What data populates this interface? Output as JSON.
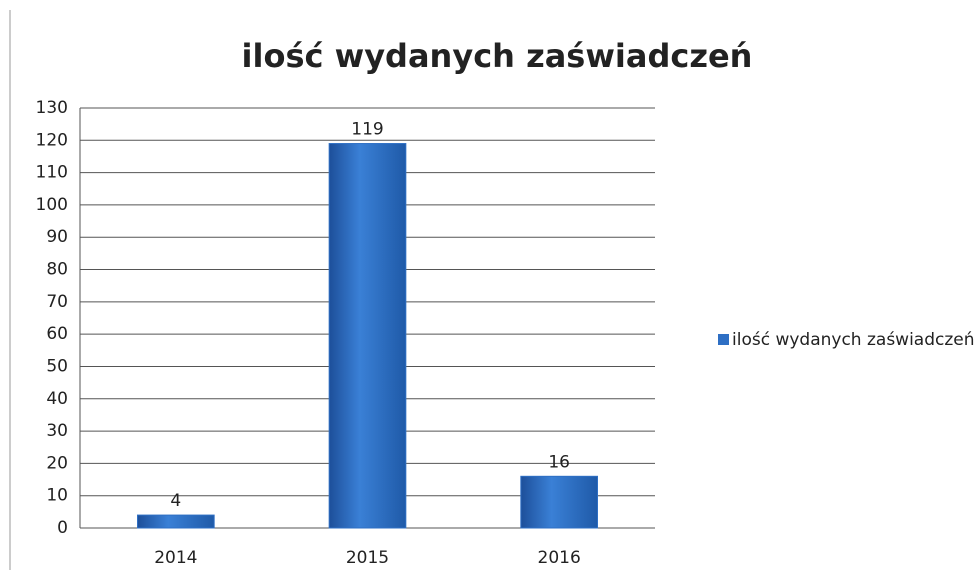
{
  "chart_data": {
    "type": "bar",
    "title": "ilość wydanych zaświadczeń",
    "categories": [
      "2014",
      "2015",
      "2016"
    ],
    "series": [
      {
        "name": "ilość wydanych zaświadczeń",
        "color": "#2e6fc4",
        "values": [
          4,
          119,
          16
        ]
      }
    ],
    "ylim": [
      0,
      130
    ],
    "yticks": [
      0,
      10,
      20,
      30,
      40,
      50,
      60,
      70,
      80,
      90,
      100,
      110,
      120,
      130
    ],
    "grid": true,
    "legend": "right"
  }
}
